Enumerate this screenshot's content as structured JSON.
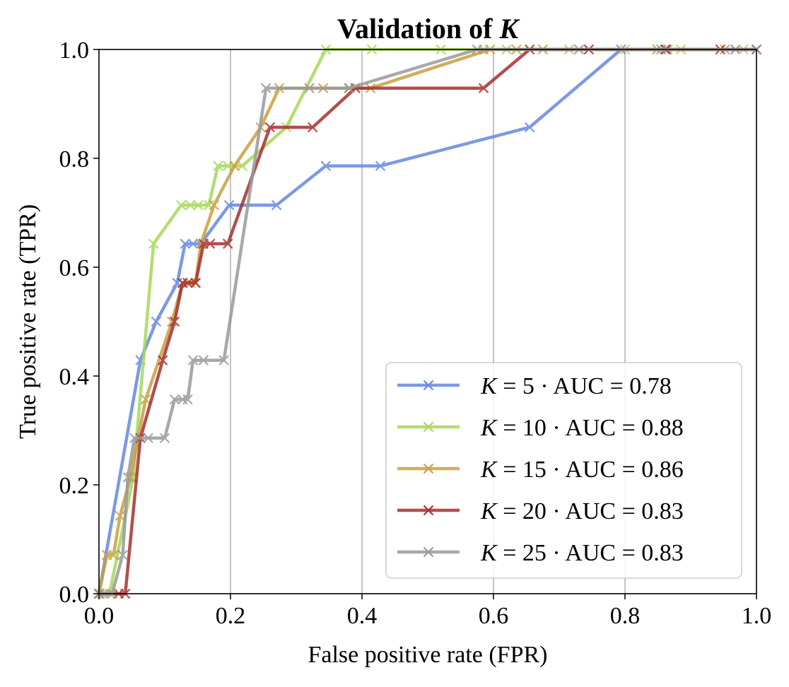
{
  "chart_data": {
    "type": "line",
    "title": "Validation of ",
    "title_var": "K",
    "xlabel": "False positive rate (FPR)",
    "ylabel": "True positive rate (TPR)",
    "xlim": [
      0.0,
      1.0
    ],
    "ylim": [
      0.0,
      1.0
    ],
    "x_ticks": [
      "0.0",
      "0.2",
      "0.4",
      "0.6",
      "0.8",
      "1.0"
    ],
    "y_ticks": [
      "0.0",
      "0.2",
      "0.4",
      "0.6",
      "0.8",
      "1.0"
    ],
    "grid": "vertical",
    "legend_position": "bottom-right",
    "series": [
      {
        "name": "K = 5 · AUC = 0.78",
        "legend_var": "K",
        "legend_rest": " = 5 · AUC = 0.78",
        "color": "#6688e0",
        "x": [
          0.0,
          0.0,
          0.063,
          0.087,
          0.119,
          0.131,
          0.143,
          0.155,
          0.198,
          0.27,
          0.345,
          0.428,
          0.655,
          0.794,
          0.861,
          0.968,
          1.0
        ],
        "y": [
          0.0,
          0.0,
          0.429,
          0.5,
          0.571,
          0.643,
          0.643,
          0.643,
          0.714,
          0.714,
          0.786,
          0.786,
          0.857,
          1.0,
          1.0,
          1.0,
          1.0
        ]
      },
      {
        "name": "K = 10 · AUC = 0.88",
        "legend_var": "K",
        "legend_rest": " = 10 · AUC = 0.88",
        "color": "#a6d85a",
        "x": [
          0.0,
          0.004,
          0.016,
          0.052,
          0.083,
          0.125,
          0.139,
          0.151,
          0.167,
          0.181,
          0.196,
          0.218,
          0.285,
          0.345,
          0.415,
          0.52,
          0.585,
          0.62,
          0.715,
          0.8,
          0.885,
          0.98,
          1.0
        ],
        "y": [
          0.0,
          0.0,
          0.0,
          0.214,
          0.643,
          0.714,
          0.714,
          0.714,
          0.714,
          0.786,
          0.786,
          0.786,
          0.857,
          1.0,
          1.0,
          1.0,
          1.0,
          1.0,
          1.0,
          1.0,
          1.0,
          1.0,
          1.0
        ]
      },
      {
        "name": "K = 15 · AUC = 0.86",
        "legend_var": "K",
        "legend_rest": " = 15 · AUC = 0.86",
        "color": "#c9a040",
        "x": [
          0.0,
          0.012,
          0.022,
          0.032,
          0.048,
          0.071,
          0.111,
          0.127,
          0.139,
          0.147,
          0.155,
          0.175,
          0.206,
          0.246,
          0.274,
          0.341,
          0.381,
          0.413,
          0.595,
          0.635,
          0.675,
          0.849,
          0.865,
          0.952,
          1.0
        ],
        "y": [
          0.0,
          0.071,
          0.071,
          0.143,
          0.214,
          0.357,
          0.5,
          0.571,
          0.571,
          0.571,
          0.643,
          0.714,
          0.786,
          0.857,
          0.929,
          0.929,
          0.929,
          0.929,
          1.0,
          1.0,
          1.0,
          1.0,
          1.0,
          1.0,
          1.0
        ]
      },
      {
        "name": "K = 20 · AUC = 0.83",
        "legend_var": "K",
        "legend_rest": " = 20 · AUC = 0.83",
        "color": "#a63030",
        "x": [
          0.0,
          0.03,
          0.04,
          0.063,
          0.097,
          0.115,
          0.127,
          0.135,
          0.147,
          0.159,
          0.169,
          0.196,
          0.26,
          0.325,
          0.39,
          0.585,
          0.655,
          0.745,
          0.862,
          0.945,
          1.0
        ],
        "y": [
          0.0,
          0.0,
          0.0,
          0.286,
          0.429,
          0.5,
          0.571,
          0.571,
          0.571,
          0.643,
          0.643,
          0.643,
          0.857,
          0.857,
          0.929,
          0.929,
          1.0,
          1.0,
          1.0,
          1.0,
          1.0
        ]
      },
      {
        "name": "K = 25 · AUC = 0.83",
        "legend_var": "K",
        "legend_rest": " = 25 · AUC = 0.83",
        "color": "#9a9a9a",
        "x": [
          0.0,
          0.008,
          0.02,
          0.036,
          0.044,
          0.054,
          0.075,
          0.1,
          0.115,
          0.127,
          0.135,
          0.143,
          0.159,
          0.19,
          0.254,
          0.32,
          0.38,
          0.575,
          0.73,
          0.855,
          1.0
        ],
        "y": [
          0.0,
          0.0,
          0.0,
          0.071,
          0.214,
          0.286,
          0.286,
          0.286,
          0.357,
          0.357,
          0.357,
          0.429,
          0.429,
          0.429,
          0.929,
          0.929,
          0.929,
          1.0,
          1.0,
          1.0,
          1.0
        ]
      }
    ]
  }
}
